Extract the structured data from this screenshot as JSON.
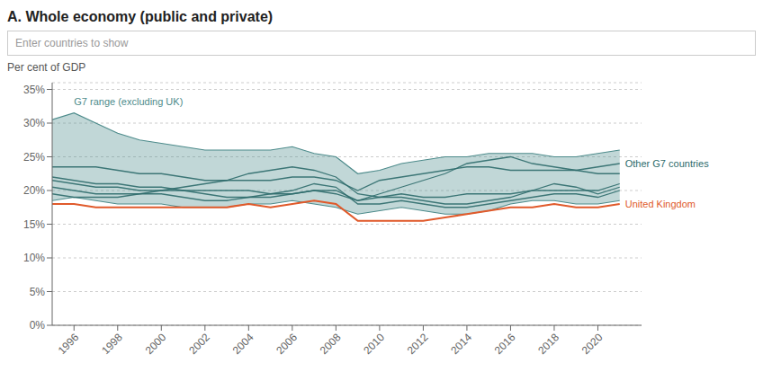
{
  "chart_data": {
    "type": "line",
    "title": "A. Whole economy (public and private)",
    "subtitle": "Enter countries to show",
    "ylabel": "Per cent of GDP",
    "x": [
      1995,
      1996,
      1997,
      1998,
      1999,
      2000,
      2001,
      2002,
      2003,
      2004,
      2005,
      2006,
      2007,
      2008,
      2009,
      2010,
      2011,
      2012,
      2013,
      2014,
      2015,
      2016,
      2017,
      2018,
      2019,
      2020,
      2021
    ],
    "series": [
      {
        "name": "G7 range (excluding UK)",
        "type": "range",
        "color": "#4d8b8b",
        "low": [
          18.5,
          19.0,
          18.5,
          18.0,
          18.0,
          18.0,
          17.5,
          17.5,
          17.5,
          18.0,
          18.0,
          18.5,
          18.0,
          17.5,
          16.5,
          17.0,
          17.5,
          17.0,
          16.5,
          16.5,
          17.0,
          18.0,
          18.5,
          18.5,
          18.0,
          18.0,
          18.5
        ],
        "high": [
          30.5,
          31.5,
          30.0,
          28.5,
          27.5,
          27.0,
          26.5,
          26.0,
          26.0,
          26.0,
          26.0,
          26.5,
          25.5,
          25.0,
          22.5,
          23.0,
          24.0,
          24.5,
          25.0,
          25.0,
          25.5,
          25.5,
          25.5,
          25.0,
          25.0,
          25.5,
          26.0
        ]
      },
      {
        "name": "Other G7 countries",
        "color": "#2d6b6b",
        "lines": [
          [
            23.5,
            23.5,
            23.5,
            23.0,
            22.5,
            22.5,
            22.0,
            21.5,
            21.5,
            21.5,
            21.5,
            22.0,
            22.0,
            21.5,
            20.0,
            21.5,
            22.0,
            22.5,
            23.0,
            23.5,
            23.5,
            23.0,
            23.0,
            23.0,
            23.0,
            23.5,
            24.0
          ],
          [
            21.5,
            21.0,
            20.5,
            20.5,
            20.0,
            20.0,
            20.0,
            20.0,
            20.0,
            20.0,
            19.5,
            19.5,
            20.0,
            19.5,
            18.5,
            19.0,
            19.5,
            19.0,
            19.0,
            19.5,
            19.5,
            19.5,
            20.0,
            20.0,
            20.0,
            20.0,
            21.0
          ],
          [
            20.5,
            20.0,
            19.5,
            19.5,
            19.5,
            20.0,
            20.5,
            21.0,
            21.5,
            22.5,
            23.0,
            23.5,
            23.0,
            22.0,
            19.5,
            19.0,
            19.0,
            18.5,
            18.0,
            18.0,
            18.5,
            19.0,
            20.0,
            21.0,
            20.5,
            19.5,
            20.5
          ],
          [
            19.5,
            19.0,
            19.0,
            19.0,
            19.5,
            19.5,
            19.0,
            18.5,
            18.5,
            19.0,
            19.5,
            20.0,
            21.0,
            20.5,
            18.0,
            18.0,
            18.5,
            18.0,
            17.5,
            17.5,
            18.0,
            18.5,
            19.0,
            19.5,
            19.5,
            19.0,
            20.0
          ],
          [
            22.0,
            21.5,
            21.0,
            21.0,
            20.5,
            20.5,
            20.0,
            19.5,
            19.0,
            19.0,
            19.0,
            19.5,
            20.0,
            20.0,
            18.5,
            19.5,
            20.5,
            21.5,
            22.5,
            24.0,
            24.5,
            25.0,
            24.0,
            23.5,
            23.0,
            22.5,
            22.5
          ]
        ]
      },
      {
        "name": "United Kingdom",
        "color": "#e05a2b",
        "values": [
          18.0,
          18.0,
          17.5,
          17.5,
          17.5,
          17.5,
          17.5,
          17.5,
          17.5,
          18.0,
          17.5,
          18.0,
          18.5,
          18.0,
          15.5,
          15.5,
          15.5,
          15.5,
          16.0,
          16.5,
          17.0,
          17.5,
          17.5,
          18.0,
          17.5,
          17.5,
          18.0
        ]
      }
    ],
    "xlim": [
      1995,
      2022
    ],
    "xticks": [
      1996,
      1998,
      2000,
      2002,
      2004,
      2006,
      2008,
      2010,
      2012,
      2014,
      2016,
      2018,
      2020
    ],
    "ylim": [
      0,
      36
    ],
    "yticks": [
      {
        "value": 0,
        "label": "0%"
      },
      {
        "value": 5,
        "label": "5%"
      },
      {
        "value": 10,
        "label": "10%"
      },
      {
        "value": 15,
        "label": "15%"
      },
      {
        "value": 20,
        "label": "20%"
      },
      {
        "value": 25,
        "label": "25%"
      },
      {
        "value": 30,
        "label": "30%"
      },
      {
        "value": 35,
        "label": "35%"
      }
    ],
    "grid": "y"
  }
}
